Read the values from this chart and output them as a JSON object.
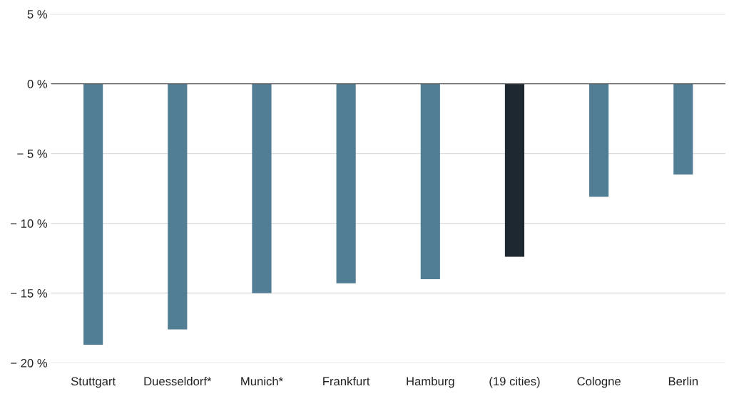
{
  "chart_data": {
    "type": "bar",
    "categories": [
      "Stuttgart",
      "Duesseldorf*",
      "Munich*",
      "Frankfurt",
      "Hamburg",
      "(19 cities)",
      "Cologne",
      "Berlin"
    ],
    "values": [
      -18.7,
      -17.6,
      -15.0,
      -14.3,
      -14.0,
      -12.4,
      -8.1,
      -6.5
    ],
    "colors": [
      "#517d95",
      "#517d95",
      "#517d95",
      "#517d95",
      "#517d95",
      "#1e2830",
      "#517d95",
      "#517d95"
    ],
    "ylim": [
      -20,
      5
    ],
    "yticks": [
      {
        "value": 5,
        "label": "5 %"
      },
      {
        "value": 0,
        "label": "0 %"
      },
      {
        "value": -5,
        "label": "− 5 %"
      },
      {
        "value": -10,
        "label": "− 10 %"
      },
      {
        "value": -15,
        "label": "− 15 %"
      },
      {
        "value": -20,
        "label": "− 20 %"
      }
    ],
    "grid": "y",
    "ref_lines": [
      {
        "axis": "y",
        "value": 0,
        "color": "#555555"
      }
    ]
  }
}
